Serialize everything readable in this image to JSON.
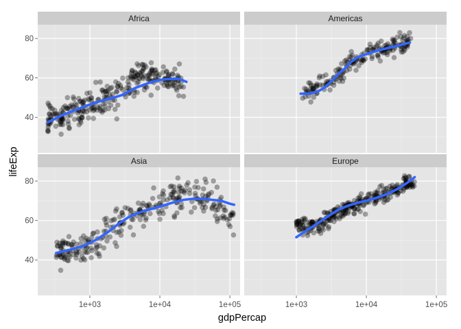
{
  "chart_data": {
    "type": "scatter",
    "title": "",
    "xlabel": "gdpPercap",
    "ylabel": "lifeExp",
    "x_scale": "log10",
    "xlim": [
      180,
      140000
    ],
    "ylim": [
      22,
      87
    ],
    "x_ticks": [
      1000,
      10000,
      100000
    ],
    "x_tick_labels": [
      "1e+03",
      "1e+04",
      "1e+05"
    ],
    "y_ticks": [
      40,
      60,
      80
    ],
    "y_tick_labels": [
      "40",
      "60",
      "80"
    ],
    "grid": true,
    "legend": "none",
    "point_color": "#000000",
    "point_opacity": 0.33,
    "smooth_color": "#3366ff",
    "panel_background": "#e5e5e5",
    "strip_background": "#cccccc",
    "facets": [
      {
        "name": "Africa",
        "cloud": {
          "x_range": [
            250,
            22000
          ],
          "count": 300,
          "centers": [
            [
              400,
              40
            ],
            [
              800,
              45
            ],
            [
              1200,
              48
            ],
            [
              2500,
              52
            ],
            [
              5000,
              60
            ],
            [
              9000,
              62
            ],
            [
              15000,
              58
            ]
          ],
          "spread": 7
        },
        "smooth": {
          "x": [
            250,
            400,
            700,
            1000,
            1500,
            2200,
            3000,
            4500,
            7000,
            10000,
            14000,
            19000,
            24000
          ],
          "y": [
            37.5,
            41,
            44.5,
            46.5,
            48.5,
            50,
            51.5,
            55,
            57.5,
            59,
            59.5,
            59.5,
            58
          ]
        }
      },
      {
        "name": "Americas",
        "cloud": {
          "x_range": [
            1200,
            43000
          ],
          "count": 190,
          "centers": [
            [
              1500,
              53
            ],
            [
              2500,
              57
            ],
            [
              4000,
              62
            ],
            [
              6000,
              67
            ],
            [
              10000,
              71
            ],
            [
              20000,
              75
            ],
            [
              35000,
              78
            ]
          ],
          "spread": 4.5
        },
        "smooth": {
          "x": [
            1150,
            1500,
            2000,
            2500,
            3000,
            4000,
            5000,
            6000,
            7500,
            10000,
            15000,
            22000,
            30000,
            42000
          ],
          "y": [
            52,
            52,
            53,
            55,
            57.5,
            62,
            65,
            68,
            70.5,
            72,
            74,
            75.5,
            76.5,
            78
          ]
        }
      },
      {
        "name": "Asia",
        "cloud": {
          "x_range": [
            330,
            113000
          ],
          "count": 280,
          "centers": [
            [
              500,
              44
            ],
            [
              800,
              47
            ],
            [
              1500,
              52
            ],
            [
              3000,
              60
            ],
            [
              6000,
              65
            ],
            [
              15000,
              71
            ],
            [
              40000,
              74
            ],
            [
              100000,
              62
            ]
          ],
          "spread": 7
        },
        "smooth": {
          "x": [
            330,
            500,
            800,
            1200,
            1800,
            2500,
            3500,
            5000,
            7000,
            10000,
            15000,
            22000,
            30000,
            40000,
            55000,
            75000,
            100000,
            115000
          ],
          "y": [
            43.5,
            45,
            47,
            50,
            54,
            58,
            61.5,
            64,
            65.5,
            67,
            69,
            70.5,
            71,
            71,
            70.5,
            70,
            68.5,
            68
          ]
        }
      },
      {
        "name": "Europe",
        "cloud": {
          "x_range": [
            1000,
            49000
          ],
          "count": 300,
          "centers": [
            [
              2000,
              58
            ],
            [
              4000,
              64
            ],
            [
              7000,
              68
            ],
            [
              12000,
              71
            ],
            [
              20000,
              74
            ],
            [
              35000,
              79
            ]
          ],
          "spread": 3.5
        },
        "smooth": {
          "x": [
            1000,
            1400,
            2000,
            2800,
            4000,
            5500,
            7500,
            10000,
            14000,
            20000,
            28000,
            38000,
            49000
          ],
          "y": [
            51.5,
            55,
            58.5,
            62,
            65.5,
            67.5,
            69,
            70,
            71.5,
            73.5,
            76,
            79,
            82
          ]
        }
      }
    ]
  }
}
